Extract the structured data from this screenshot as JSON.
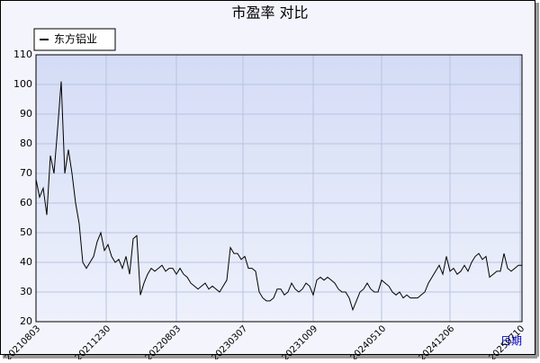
{
  "chart_data": {
    "type": "line",
    "title": "市盈率  对比",
    "x_label": "日期",
    "series": [
      {
        "name": "东方铝业",
        "color": "#000000",
        "values": [
          68,
          62,
          65,
          56,
          76,
          70,
          85,
          101,
          70,
          78,
          70,
          60,
          53,
          40,
          38,
          40,
          42,
          47,
          50,
          44,
          46,
          42,
          40,
          41,
          38,
          42,
          36,
          48,
          49,
          29,
          33,
          36,
          38,
          37,
          38,
          39,
          37,
          38,
          38,
          36,
          38,
          36,
          35,
          33,
          32,
          31,
          32,
          33,
          31,
          32,
          31,
          30,
          32,
          34,
          45,
          43,
          43,
          41,
          42,
          38,
          38,
          37,
          30,
          28,
          27,
          27,
          28,
          31,
          31,
          29,
          30,
          33,
          31,
          30,
          31,
          33,
          32,
          29,
          34,
          35,
          34,
          35,
          34,
          33,
          31,
          30,
          30,
          28,
          24,
          27,
          30,
          31,
          33,
          31,
          30,
          30,
          34,
          33,
          32,
          30,
          29,
          30,
          28,
          29,
          28,
          28,
          28,
          29,
          30,
          33,
          35,
          37,
          39,
          36,
          42,
          37,
          38,
          36,
          37,
          39,
          37,
          40,
          42,
          43,
          41,
          42,
          35,
          36,
          37,
          37,
          43,
          38,
          37,
          38,
          39,
          39
        ]
      }
    ],
    "xlim": [
      0,
      135
    ],
    "xticks": [
      {
        "value": 0,
        "label": "20210803"
      },
      {
        "value": 19.5,
        "label": "20211230"
      },
      {
        "value": 39,
        "label": "20220803"
      },
      {
        "value": 57.5,
        "label": "20230307"
      },
      {
        "value": 77,
        "label": "20231009"
      },
      {
        "value": 96,
        "label": "20240510"
      },
      {
        "value": 115,
        "label": "20241206"
      },
      {
        "value": 134.5,
        "label": "20250710"
      }
    ],
    "ylim": [
      20,
      110
    ],
    "yticks": [
      20,
      30,
      40,
      50,
      60,
      70,
      80,
      90,
      100,
      110
    ],
    "grid": true
  }
}
